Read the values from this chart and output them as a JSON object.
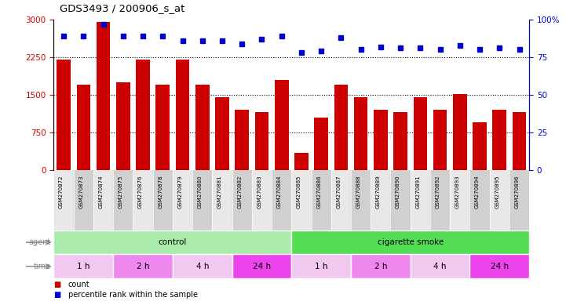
{
  "title": "GDS3493 / 200906_s_at",
  "samples": [
    "GSM270872",
    "GSM270873",
    "GSM270874",
    "GSM270875",
    "GSM270876",
    "GSM270878",
    "GSM270879",
    "GSM270880",
    "GSM270881",
    "GSM270882",
    "GSM270883",
    "GSM270884",
    "GSM270885",
    "GSM270886",
    "GSM270887",
    "GSM270888",
    "GSM270889",
    "GSM270890",
    "GSM270891",
    "GSM270892",
    "GSM270893",
    "GSM270894",
    "GSM270895",
    "GSM270896"
  ],
  "counts": [
    2200,
    1700,
    2950,
    1750,
    2200,
    1700,
    2200,
    1700,
    1450,
    1200,
    1150,
    1800,
    350,
    1050,
    1700,
    1450,
    1200,
    1150,
    1450,
    1200,
    1520,
    950,
    1200,
    1150
  ],
  "percentile_ranks": [
    89,
    89,
    97,
    89,
    89,
    89,
    86,
    86,
    86,
    84,
    87,
    89,
    78,
    79,
    88,
    80,
    82,
    81,
    81,
    80,
    83,
    80,
    81,
    80
  ],
  "bar_color": "#cc0000",
  "dot_color": "#0000cc",
  "ylim_left": [
    0,
    3000
  ],
  "ylim_right": [
    0,
    100
  ],
  "yticks_left": [
    0,
    750,
    1500,
    2250,
    3000
  ],
  "ytick_labels_left": [
    "0",
    "750",
    "1500",
    "2250",
    "3000"
  ],
  "yticks_right": [
    0,
    25,
    50,
    75,
    100
  ],
  "ytick_labels_right": [
    "0",
    "25",
    "50",
    "75",
    "100%"
  ],
  "agent_groups": [
    {
      "label": "control",
      "start": 0,
      "end": 12,
      "color": "#aaeaaa"
    },
    {
      "label": "cigarette smoke",
      "start": 12,
      "end": 24,
      "color": "#55dd55"
    }
  ],
  "time_groups": [
    {
      "label": "1 h",
      "start": 0,
      "end": 3,
      "color": "#f0c8f0"
    },
    {
      "label": "2 h",
      "start": 3,
      "end": 6,
      "color": "#ee88ee"
    },
    {
      "label": "4 h",
      "start": 6,
      "end": 9,
      "color": "#f0c8f0"
    },
    {
      "label": "24 h",
      "start": 9,
      "end": 12,
      "color": "#ee44ee"
    },
    {
      "label": "1 h",
      "start": 12,
      "end": 15,
      "color": "#f0c8f0"
    },
    {
      "label": "2 h",
      "start": 15,
      "end": 18,
      "color": "#ee88ee"
    },
    {
      "label": "4 h",
      "start": 18,
      "end": 21,
      "color": "#f0c8f0"
    },
    {
      "label": "24 h",
      "start": 21,
      "end": 24,
      "color": "#ee44ee"
    }
  ],
  "legend_count_color": "#cc0000",
  "legend_dot_color": "#0000cc",
  "bg_color": "#ffffff",
  "axis_color_left": "#cc0000",
  "axis_color_right": "#0000cc",
  "xlabel_bg_odd": "#e8e8e8",
  "xlabel_bg_even": "#d0d0d0",
  "grid_yticks": [
    750,
    1500,
    2250
  ]
}
